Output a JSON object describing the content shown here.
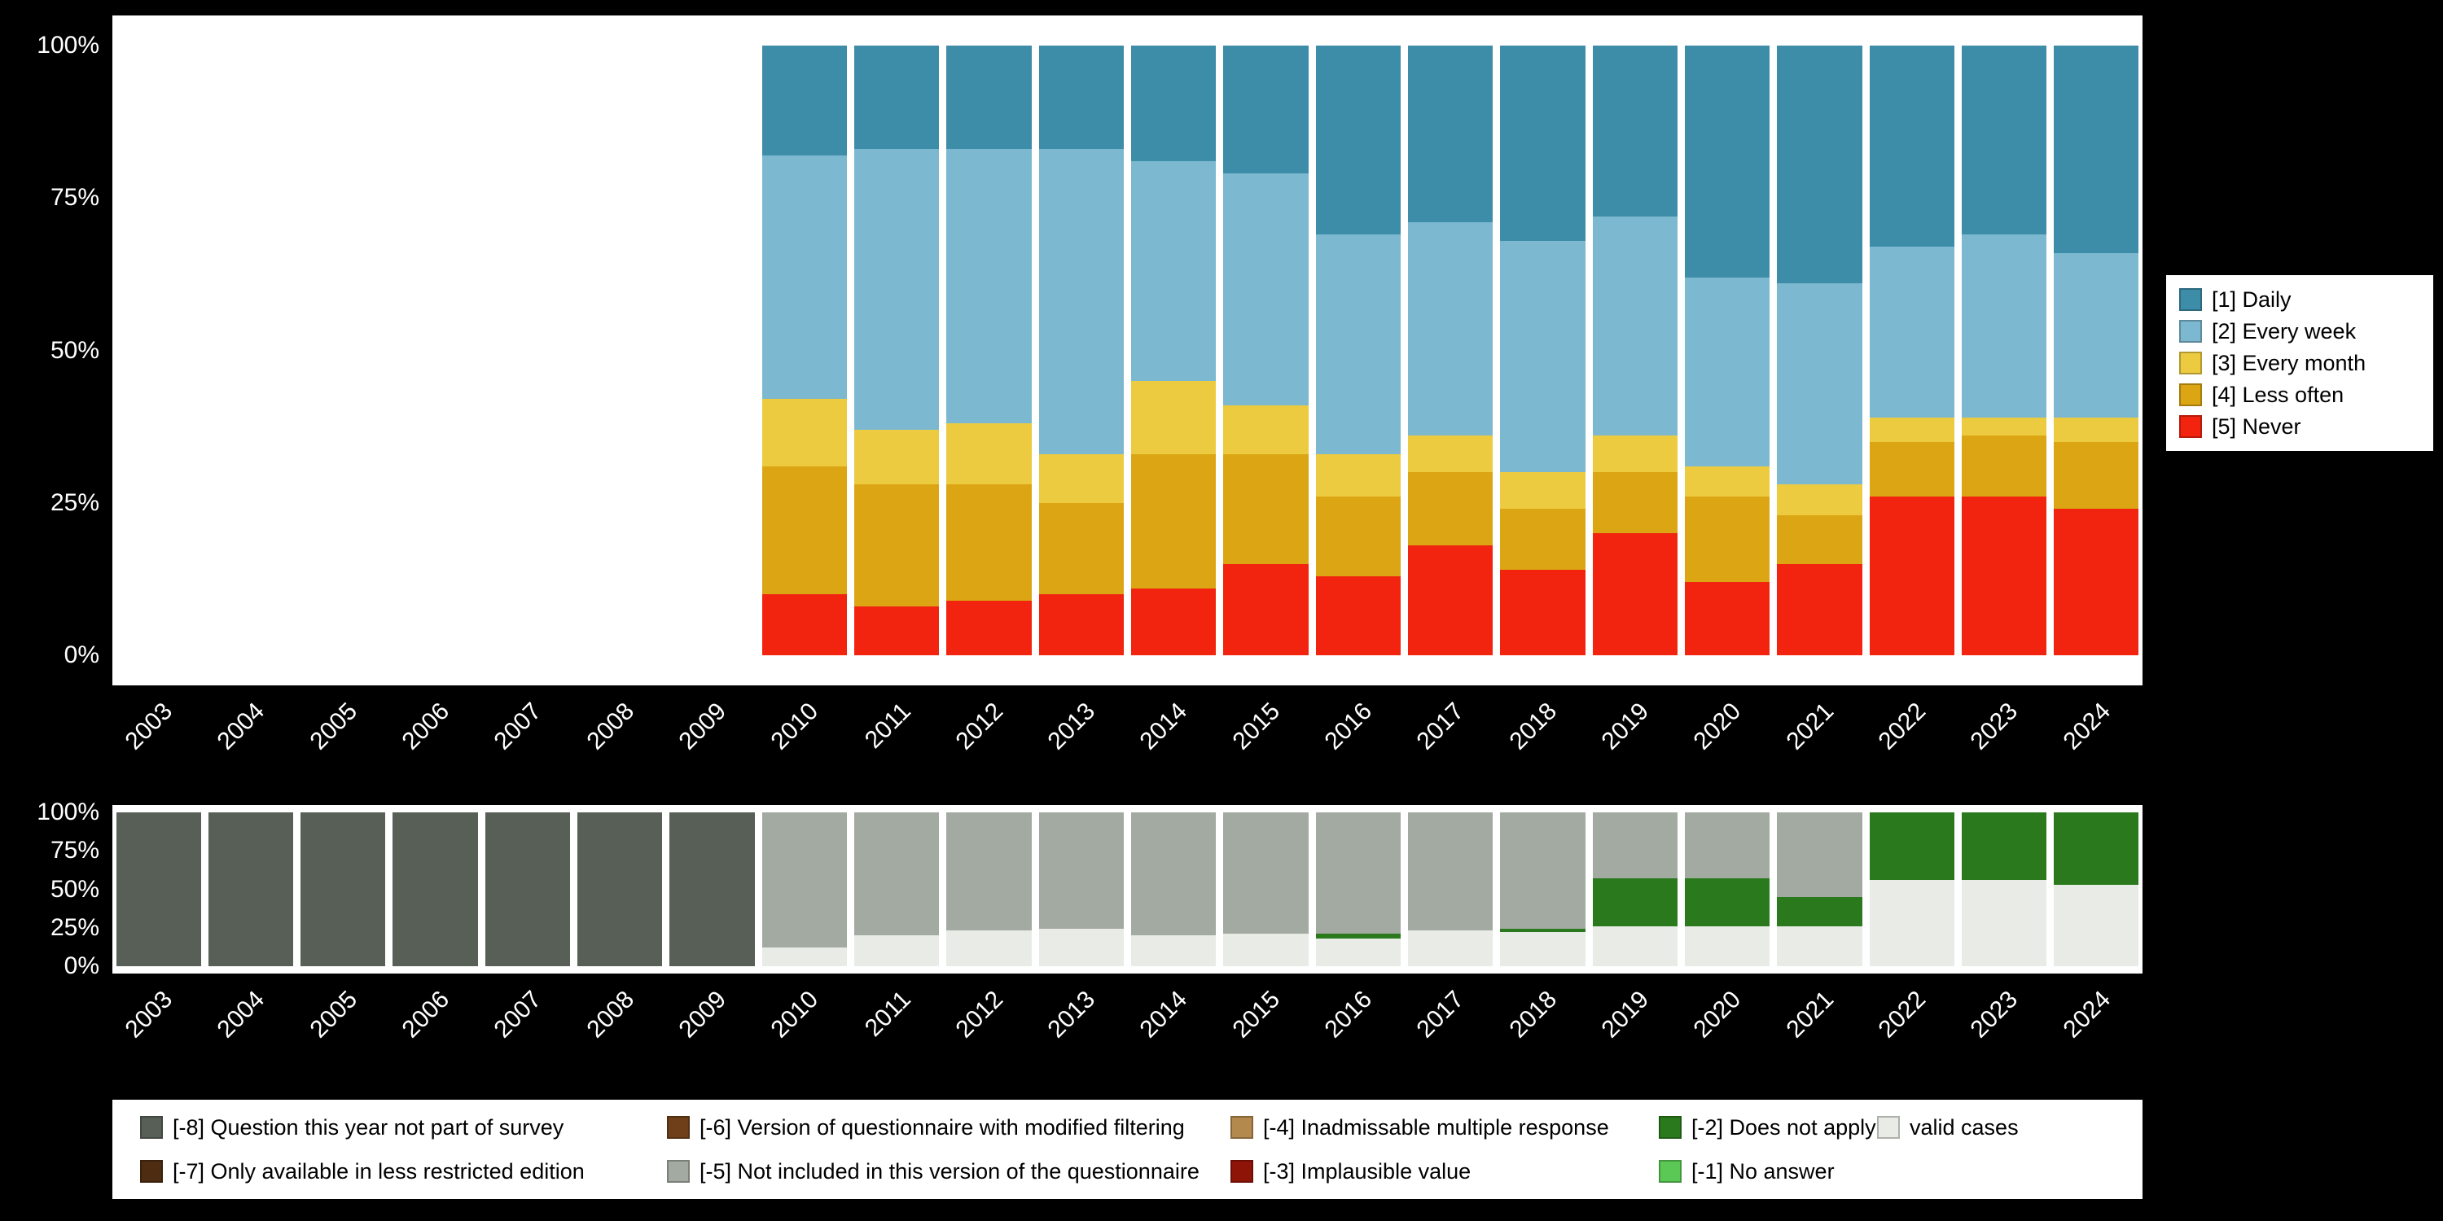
{
  "page": {
    "background": "#000000",
    "panel_background": "#ffffff",
    "axis_text_color": "#ffffff"
  },
  "axis": {
    "years": [
      "2003",
      "2004",
      "2005",
      "2006",
      "2007",
      "2008",
      "2009",
      "2010",
      "2011",
      "2012",
      "2013",
      "2014",
      "2015",
      "2016",
      "2017",
      "2018",
      "2019",
      "2020",
      "2021",
      "2022",
      "2023",
      "2024"
    ]
  },
  "chart_data": [
    {
      "id": "frequency",
      "type": "bar",
      "stacked": true,
      "unit": "percent",
      "ylim": [
        0,
        100
      ],
      "grid": false,
      "legend_position": "right",
      "categories": [
        "2003",
        "2004",
        "2005",
        "2006",
        "2007",
        "2008",
        "2009",
        "2010",
        "2011",
        "2012",
        "2013",
        "2014",
        "2015",
        "2016",
        "2017",
        "2018",
        "2019",
        "2020",
        "2021",
        "2022",
        "2023",
        "2024"
      ],
      "yticks": [
        {
          "value": 0,
          "label": "0%"
        },
        {
          "value": 25,
          "label": "25%"
        },
        {
          "value": 50,
          "label": "50%"
        },
        {
          "value": 75,
          "label": "75%"
        },
        {
          "value": 100,
          "label": "100%"
        }
      ],
      "series": [
        {
          "name": "[1] Daily",
          "color": "#3d8ca8",
          "values": [
            0,
            0,
            0,
            0,
            0,
            0,
            0,
            18,
            17,
            17,
            17,
            19,
            21,
            31,
            29,
            32,
            28,
            38,
            39,
            33,
            31,
            34
          ]
        },
        {
          "name": "[2] Every week",
          "color": "#7cb8cf",
          "values": [
            0,
            0,
            0,
            0,
            0,
            0,
            0,
            40,
            46,
            45,
            50,
            36,
            38,
            36,
            35,
            38,
            36,
            31,
            33,
            28,
            30,
            27
          ]
        },
        {
          "name": "[3] Every month",
          "color": "#edcb40",
          "values": [
            0,
            0,
            0,
            0,
            0,
            0,
            0,
            11,
            9,
            10,
            8,
            12,
            8,
            7,
            6,
            6,
            6,
            5,
            5,
            4,
            3,
            4
          ]
        },
        {
          "name": "[4] Less often",
          "color": "#dba513",
          "values": [
            0,
            0,
            0,
            0,
            0,
            0,
            0,
            21,
            20,
            19,
            15,
            22,
            18,
            13,
            12,
            10,
            10,
            14,
            8,
            9,
            10,
            11
          ]
        },
        {
          "name": "[5] Never",
          "color": "#f2230f",
          "values": [
            0,
            0,
            0,
            0,
            0,
            0,
            0,
            10,
            8,
            9,
            10,
            11,
            15,
            13,
            18,
            14,
            20,
            12,
            15,
            26,
            26,
            24
          ]
        }
      ],
      "stack_note": "last listed series is at the bottom of each bar"
    },
    {
      "id": "missing",
      "type": "bar",
      "stacked": true,
      "unit": "percent",
      "ylim": [
        0,
        100
      ],
      "grid": false,
      "legend_position": "bottom",
      "categories": [
        "2003",
        "2004",
        "2005",
        "2006",
        "2007",
        "2008",
        "2009",
        "2010",
        "2011",
        "2012",
        "2013",
        "2014",
        "2015",
        "2016",
        "2017",
        "2018",
        "2019",
        "2020",
        "2021",
        "2022",
        "2023",
        "2024"
      ],
      "yticks": [
        {
          "value": 0,
          "label": "0%"
        },
        {
          "value": 25,
          "label": "25%"
        },
        {
          "value": 50,
          "label": "50%"
        },
        {
          "value": 75,
          "label": "75%"
        },
        {
          "value": 100,
          "label": "100%"
        }
      ],
      "series": [
        {
          "name": "[-8] Question this year not part of survey",
          "color": "#575f57",
          "values": [
            100,
            100,
            100,
            100,
            100,
            100,
            100,
            0,
            0,
            0,
            0,
            0,
            0,
            0,
            0,
            0,
            0,
            0,
            0,
            0,
            0,
            0
          ]
        },
        {
          "name": "[-7] Only available in less restricted edition",
          "color": "#4e2c11",
          "values": [
            0,
            0,
            0,
            0,
            0,
            0,
            0,
            0,
            0,
            0,
            0,
            0,
            0,
            0,
            0,
            0,
            0,
            0,
            0,
            0,
            0,
            0
          ]
        },
        {
          "name": "[-6] Version of questionnaire with modified filtering",
          "color": "#6f3f19",
          "values": [
            0,
            0,
            0,
            0,
            0,
            0,
            0,
            0,
            0,
            0,
            0,
            0,
            0,
            0,
            0,
            0,
            0,
            0,
            0,
            0,
            0,
            0
          ]
        },
        {
          "name": "[-5] Not included in this version of the questionnaire",
          "color": "#a3aaa1",
          "values": [
            0,
            0,
            0,
            0,
            0,
            0,
            0,
            88,
            80,
            77,
            76,
            80,
            79,
            79,
            77,
            76,
            43,
            43,
            55,
            0,
            0,
            0
          ]
        },
        {
          "name": "[-4] Inadmissable multiple response",
          "color": "#b3894d",
          "values": [
            0,
            0,
            0,
            0,
            0,
            0,
            0,
            0,
            0,
            0,
            0,
            0,
            0,
            0,
            0,
            0,
            0,
            0,
            0,
            0,
            0,
            0
          ]
        },
        {
          "name": "[-3] Implausible value",
          "color": "#8f1408",
          "values": [
            0,
            0,
            0,
            0,
            0,
            0,
            0,
            0,
            0,
            0,
            0,
            0,
            0,
            0,
            0,
            0,
            0,
            0,
            0,
            0,
            0,
            0
          ]
        },
        {
          "name": "[-2] Does not apply",
          "color": "#2a7a1d",
          "values": [
            0,
            0,
            0,
            0,
            0,
            0,
            0,
            0,
            0,
            0,
            0,
            0,
            0,
            3,
            0,
            2,
            31,
            31,
            19,
            44,
            44,
            47
          ]
        },
        {
          "name": "[-1] No answer",
          "color": "#5bc754",
          "values": [
            0,
            0,
            0,
            0,
            0,
            0,
            0,
            0,
            0,
            0,
            0,
            0,
            0,
            0,
            0,
            0,
            0,
            0,
            0,
            0,
            0,
            0
          ]
        },
        {
          "name": "valid cases",
          "color": "#e8ebe6",
          "values": [
            0,
            0,
            0,
            0,
            0,
            0,
            0,
            12,
            20,
            23,
            24,
            20,
            21,
            18,
            23,
            22,
            26,
            26,
            26,
            56,
            56,
            53
          ]
        }
      ],
      "stack_note": "last listed series is at the bottom of each bar"
    }
  ]
}
